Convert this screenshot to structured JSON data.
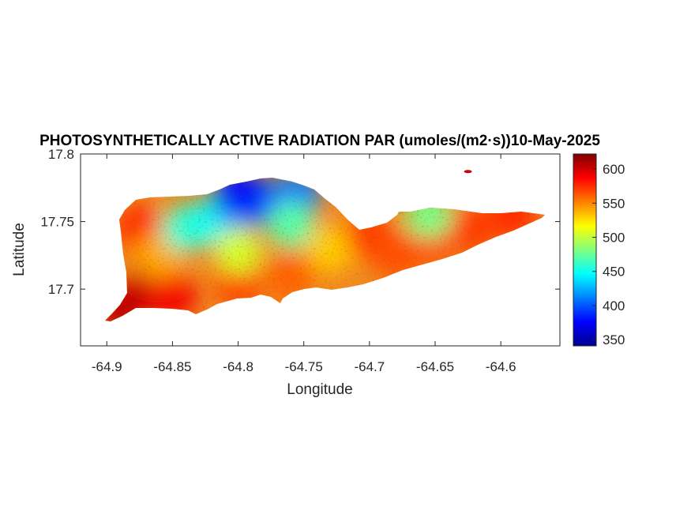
{
  "chart_data": {
    "type": "heatmap",
    "title": "PHOTOSYNTHETICALLY ACTIVE RADIATION PAR (umoles/(m2·s))10-May-2025",
    "xlabel": "Longitude",
    "ylabel": "Latitude",
    "xlim": [
      -64.92,
      -64.555
    ],
    "ylim": [
      17.658,
      17.8
    ],
    "xticks": [
      -64.9,
      -64.85,
      -64.8,
      -64.75,
      -64.7,
      -64.65,
      -64.6
    ],
    "xtick_labels": [
      "-64.9",
      "-64.85",
      "-64.8",
      "-64.75",
      "-64.7",
      "-64.65",
      "-64.6"
    ],
    "yticks": [
      17.7,
      17.75,
      17.8
    ],
    "ytick_labels": [
      "17.7",
      "17.75",
      "17.8"
    ],
    "colorbar": {
      "colormap": "jet",
      "range": [
        341,
        622
      ],
      "ticks": [
        350,
        400,
        450,
        500,
        550,
        600
      ],
      "tick_labels": [
        "350",
        "400",
        "450",
        "500",
        "550",
        "600"
      ]
    },
    "grid": false,
    "regions": [
      {
        "x": -64.87,
        "y": 17.7,
        "value": 600
      },
      {
        "x": -64.89,
        "y": 17.685,
        "value": 605
      },
      {
        "x": -64.85,
        "y": 17.695,
        "value": 590
      },
      {
        "x": -64.8,
        "y": 17.705,
        "value": 570
      },
      {
        "x": -64.76,
        "y": 17.71,
        "value": 560
      },
      {
        "x": -64.875,
        "y": 17.745,
        "value": 575
      },
      {
        "x": -64.86,
        "y": 17.725,
        "value": 540
      },
      {
        "x": -64.84,
        "y": 17.745,
        "value": 460
      },
      {
        "x": -64.82,
        "y": 17.75,
        "value": 450
      },
      {
        "x": -64.8,
        "y": 17.76,
        "value": 420
      },
      {
        "x": -64.785,
        "y": 17.765,
        "value": 395
      },
      {
        "x": -64.8,
        "y": 17.772,
        "value": 380
      },
      {
        "x": -64.755,
        "y": 17.77,
        "value": 410
      },
      {
        "x": -64.76,
        "y": 17.748,
        "value": 470
      },
      {
        "x": -64.8,
        "y": 17.728,
        "value": 505
      },
      {
        "x": -64.73,
        "y": 17.73,
        "value": 530
      },
      {
        "x": -64.7,
        "y": 17.74,
        "value": 570
      },
      {
        "x": -64.68,
        "y": 17.725,
        "value": 565
      },
      {
        "x": -64.65,
        "y": 17.735,
        "value": 565
      },
      {
        "x": -64.62,
        "y": 17.745,
        "value": 570
      },
      {
        "x": -64.59,
        "y": 17.755,
        "value": 575
      },
      {
        "x": -64.655,
        "y": 17.755,
        "value": 480
      },
      {
        "x": -64.625,
        "y": 17.787,
        "value": 600
      }
    ]
  }
}
